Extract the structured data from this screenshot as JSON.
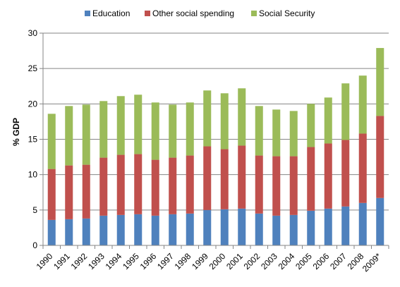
{
  "chart_data": {
    "type": "bar",
    "stacked": true,
    "categories": [
      "1990",
      "1991",
      "1992",
      "1993",
      "1994",
      "1995",
      "1996",
      "1997",
      "1998",
      "1999",
      "2000",
      "2001",
      "2002",
      "2003",
      "2004",
      "2005",
      "2006",
      "2007",
      "2008",
      "2009*"
    ],
    "series": [
      {
        "name": "Education",
        "color": "#4F81BD",
        "values": [
          3.6,
          3.7,
          3.8,
          4.2,
          4.3,
          4.4,
          4.2,
          4.4,
          4.5,
          5.0,
          5.1,
          5.2,
          4.5,
          4.2,
          4.3,
          4.9,
          5.2,
          5.5,
          6.0,
          6.7
        ]
      },
      {
        "name": "Other social spending",
        "color": "#C0504D",
        "values": [
          7.2,
          7.6,
          7.6,
          8.2,
          8.5,
          8.5,
          7.9,
          8.0,
          8.2,
          9.0,
          8.5,
          8.9,
          8.2,
          8.4,
          8.3,
          9.0,
          9.2,
          9.4,
          9.8,
          11.6
        ]
      },
      {
        "name": "Social Security",
        "color": "#9BBB59",
        "values": [
          7.8,
          8.4,
          8.5,
          8.0,
          8.3,
          8.4,
          8.1,
          7.5,
          7.5,
          7.9,
          7.9,
          8.1,
          7.0,
          6.6,
          6.4,
          6.1,
          6.5,
          8.0,
          8.2,
          9.6
        ]
      }
    ],
    "ylabel": "% GDP",
    "ylim": [
      0,
      30
    ],
    "yticks": [
      0,
      5,
      10,
      15,
      20,
      25,
      30
    ],
    "grid": true,
    "legend": "top"
  }
}
